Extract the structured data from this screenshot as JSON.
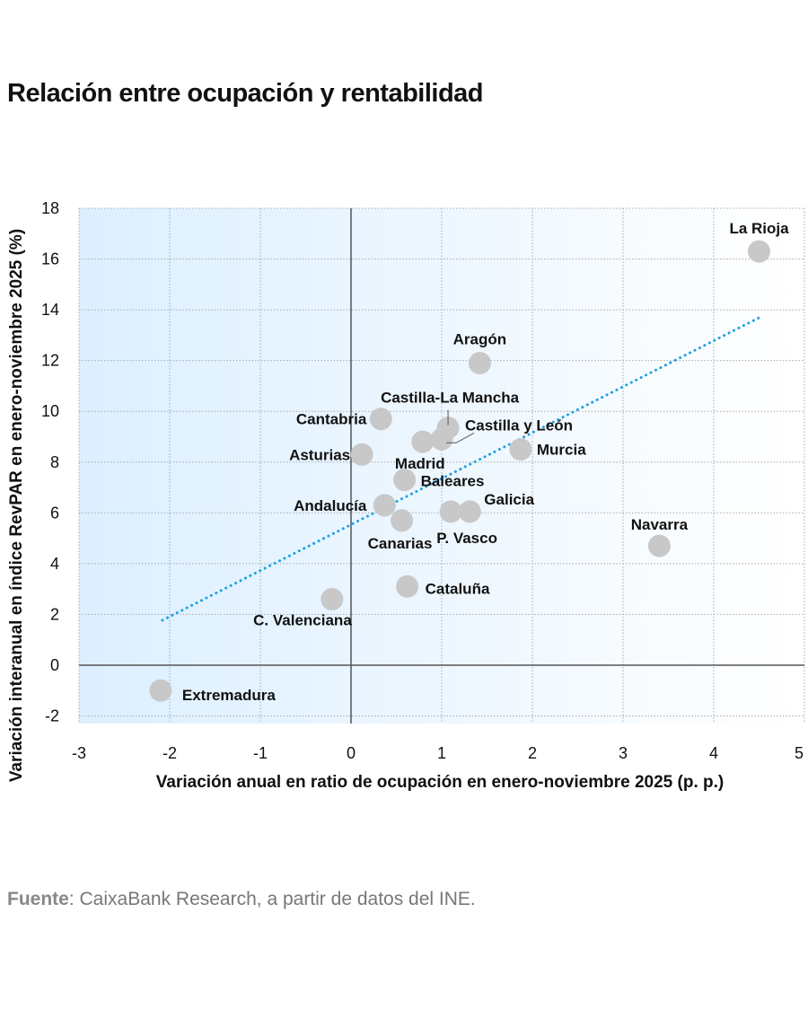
{
  "title": "Relación entre ocupación y rentabilidad",
  "source": {
    "label": "Fuente",
    "text": ": CaixaBank Research, a partir de datos del INE."
  },
  "chart_data": {
    "type": "scatter",
    "title": "Relación entre ocupación y rentabilidad",
    "xlabel": "Variación anual en ratio de ocupación en enero-noviembre 2025 (p. p.)",
    "ylabel": "Variación interanual en índice RevPAR en enero-noviembre 2025 (%)",
    "xlim": [
      -3,
      5
    ],
    "ylim": [
      -2.3,
      18
    ],
    "xticks": [
      -3,
      -2,
      -1,
      0,
      1,
      2,
      3,
      4,
      5
    ],
    "yticks": [
      -2,
      0,
      2,
      4,
      6,
      8,
      10,
      12,
      14,
      16,
      18
    ],
    "grid": true,
    "marker_color": "#c8c8c8",
    "trend_color": "#1ea0e0",
    "background_colors": [
      "#dcefff",
      "#ffffff"
    ],
    "points": [
      {
        "name": "La Rioja",
        "x": 4.5,
        "y": 16.3
      },
      {
        "name": "Aragón",
        "x": 1.42,
        "y": 11.9
      },
      {
        "name": "Cantabria",
        "x": 0.33,
        "y": 9.7
      },
      {
        "name": "Castilla-La Mancha",
        "x": 1.07,
        "y": 9.35
      },
      {
        "name": "Castilla y León",
        "x": 1.0,
        "y": 8.9
      },
      {
        "name": "Madrid",
        "x": 0.79,
        "y": 8.8
      },
      {
        "name": "Murcia",
        "x": 1.87,
        "y": 8.5
      },
      {
        "name": "Asturias",
        "x": 0.12,
        "y": 8.3
      },
      {
        "name": "Baleares",
        "x": 0.59,
        "y": 7.3
      },
      {
        "name": "Andalucía",
        "x": 0.37,
        "y": 6.3
      },
      {
        "name": "Canarias",
        "x": 0.56,
        "y": 5.7
      },
      {
        "name": "P. Vasco",
        "x": 1.1,
        "y": 6.05
      },
      {
        "name": "Galicia",
        "x": 1.31,
        "y": 6.05
      },
      {
        "name": "Navarra",
        "x": 3.4,
        "y": 4.7
      },
      {
        "name": "Cataluña",
        "x": 0.62,
        "y": 3.1
      },
      {
        "name": "C. Valenciana",
        "x": -0.21,
        "y": 2.6
      },
      {
        "name": "Extremadura",
        "x": -2.1,
        "y": -1.0
      }
    ],
    "trendline": {
      "x": [
        -2.08,
        4.54
      ],
      "y": [
        1.77,
        13.76
      ]
    }
  }
}
